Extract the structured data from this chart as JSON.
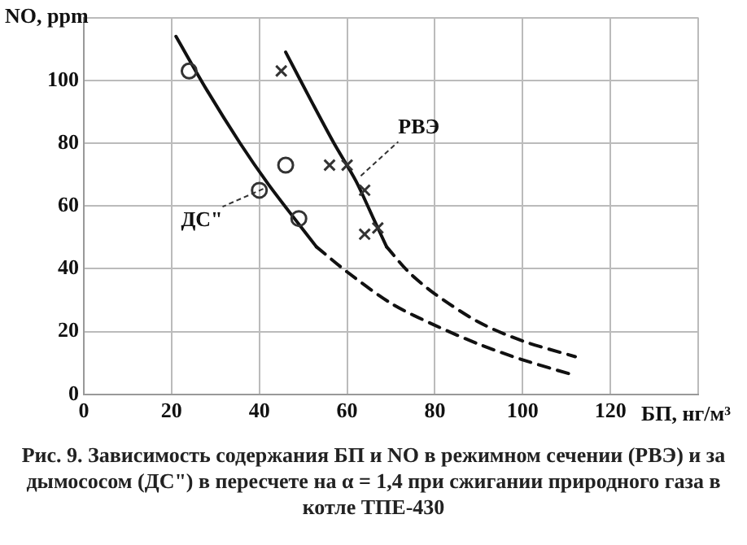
{
  "chart_data": {
    "type": "line",
    "xlabel": "БП, нг/м³",
    "ylabel": "NO, ppm",
    "xlim": [
      0,
      140
    ],
    "ylim": [
      0,
      120
    ],
    "xticks": [
      0,
      20,
      40,
      60,
      80,
      100,
      120,
      {
        "value": 140,
        "label": null
      }
    ],
    "yticks": [
      0,
      20,
      40,
      60,
      80,
      100,
      {
        "value": 120,
        "label": null
      }
    ],
    "grid": true,
    "legend": false,
    "series": [
      {
        "name": "ДС\"",
        "type": "line",
        "color": "#111111",
        "line_style": "solid",
        "marker": "none",
        "x": [
          21,
          28,
          35.6,
          42,
          48,
          53
        ],
        "values": [
          114,
          97,
          80,
          67,
          56,
          47
        ]
      },
      {
        "type": "line",
        "color": "#111111",
        "line_style": "dashed",
        "marker": "none",
        "x": [
          53,
          60,
          70,
          80,
          90,
          100,
          112
        ],
        "values": [
          47,
          39,
          29,
          22,
          16,
          11,
          6
        ]
      },
      {
        "name": "РВЭ",
        "type": "line",
        "color": "#111111",
        "line_style": "solid",
        "marker": "none",
        "x": [
          46,
          52,
          57,
          62,
          66,
          69
        ],
        "values": [
          109,
          93,
          80,
          68,
          56,
          47
        ]
      },
      {
        "type": "line",
        "color": "#111111",
        "line_style": "dashed",
        "marker": "none",
        "x": [
          69,
          74,
          80,
          90,
          100,
          112
        ],
        "values": [
          47,
          39,
          32,
          23,
          17,
          12
        ]
      },
      {
        "type": "scatter",
        "color": "#333333",
        "marker": "circle",
        "x": [
          24,
          46,
          40,
          49
        ],
        "values": [
          103,
          73,
          65,
          56
        ]
      },
      {
        "type": "scatter",
        "color": "#333333",
        "marker": "cross",
        "x": [
          45,
          56,
          60,
          64,
          64,
          67
        ],
        "values": [
          103,
          73,
          73,
          65,
          51,
          53
        ]
      }
    ],
    "annotations": [
      "Рис. 9. Зависимость содержания БП и NO в режимном сечении (РВЭ) и за дымососом (ДС\") в пересчете на α = 1,4 при сжигании природного газа в котле ТПЕ-430"
    ]
  }
}
